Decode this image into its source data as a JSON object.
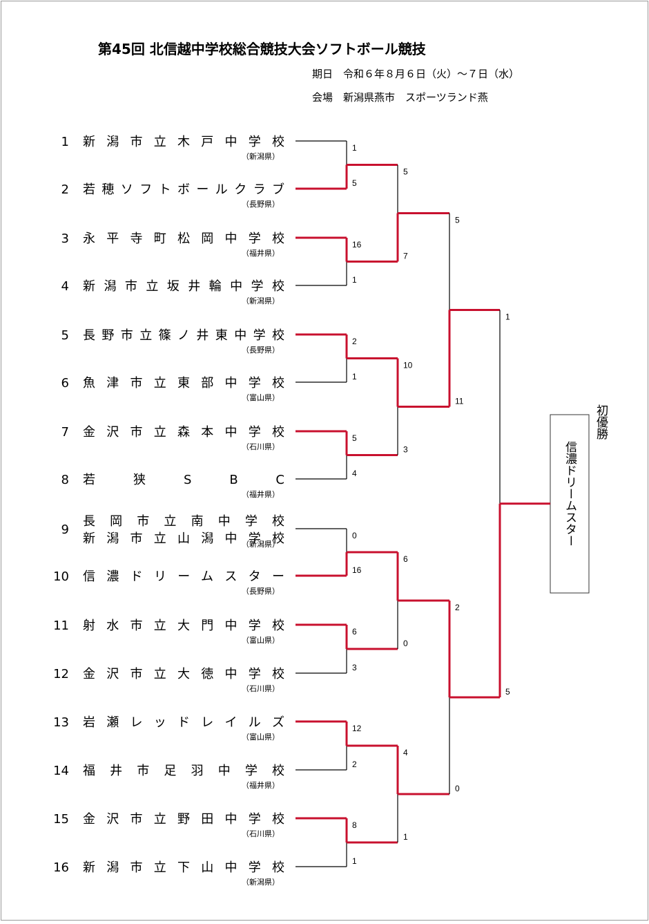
{
  "header": {
    "title": "第45回 北信越中学校総合競技大会ソフトボール競技",
    "date": "期日　令和６年８月６日（火）～７日（水）",
    "venue": "会場　新潟県燕市　スポーツランド燕"
  },
  "teams": [
    {
      "number": "1",
      "names": [
        "新潟市立木戸中学校"
      ],
      "pref": "（新潟県）"
    },
    {
      "number": "2",
      "names": [
        "若穂ソフトボールクラブ"
      ],
      "pref": "（長野県）"
    },
    {
      "number": "3",
      "names": [
        "永平寺町松岡中学校"
      ],
      "pref": "（福井県）"
    },
    {
      "number": "4",
      "names": [
        "新潟市立坂井輪中学校"
      ],
      "pref": "（新潟県）"
    },
    {
      "number": "5",
      "names": [
        "長野市立篠ノ井東中学校"
      ],
      "pref": "（長野県）"
    },
    {
      "number": "6",
      "names": [
        "魚津市立東部中学校"
      ],
      "pref": "（富山県）"
    },
    {
      "number": "7",
      "names": [
        "金沢市立森本中学校"
      ],
      "pref": "（石川県）"
    },
    {
      "number": "8",
      "names": [
        "若狭SBC"
      ],
      "pref": "（福井県）"
    },
    {
      "number": "9",
      "names": [
        "長岡市立南中学校",
        "新潟市立山潟中学校"
      ],
      "pref": "（新潟県）"
    },
    {
      "number": "10",
      "names": [
        "信濃ドリームスター"
      ],
      "pref": "（長野県）"
    },
    {
      "number": "11",
      "names": [
        "射水市立大門中学校"
      ],
      "pref": "（富山県）"
    },
    {
      "number": "12",
      "names": [
        "金沢市立大徳中学校"
      ],
      "pref": "（石川県）"
    },
    {
      "number": "13",
      "names": [
        "岩瀬レッドレイルズ"
      ],
      "pref": "（富山県）"
    },
    {
      "number": "14",
      "names": [
        "福井市足羽中学校"
      ],
      "pref": "（福井県）"
    },
    {
      "number": "15",
      "names": [
        "金沢市立野田中学校"
      ],
      "pref": "（石川県）"
    },
    {
      "number": "16",
      "names": [
        "新潟市立下山中学校"
      ],
      "pref": "（新潟県）"
    }
  ],
  "round_scores": [
    [
      "1",
      "5",
      "16",
      "1",
      "2",
      "1",
      "5",
      "4",
      "0",
      "16",
      "6",
      "3",
      "12",
      "2",
      "8",
      "1"
    ],
    [
      "5",
      "7",
      "10",
      "3",
      "6",
      "0",
      "4",
      "1"
    ],
    [
      "5",
      "11",
      "2",
      "0"
    ],
    [
      "1",
      "5"
    ]
  ],
  "win_color": "#c8102e",
  "champion": {
    "label": "初優勝",
    "name": "信濃ドリームスター"
  }
}
